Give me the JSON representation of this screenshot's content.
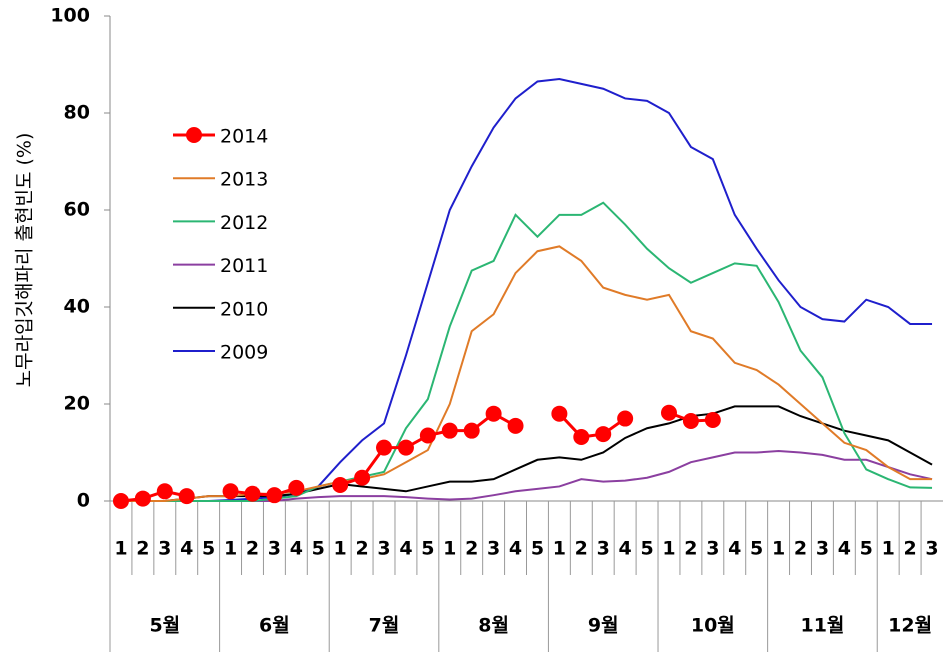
{
  "chart_data": {
    "type": "line",
    "y_label": "노무라입깃해파리 출현빈도 (%)",
    "ylim": [
      0,
      100
    ],
    "yticks": [
      0,
      20,
      40,
      60,
      80,
      100
    ],
    "categories": [
      [
        "1",
        "5월"
      ],
      [
        "2",
        "5월"
      ],
      [
        "3",
        "5월"
      ],
      [
        "4",
        "5월"
      ],
      [
        "5",
        "5월"
      ],
      [
        "1",
        "6월"
      ],
      [
        "2",
        "6월"
      ],
      [
        "3",
        "6월"
      ],
      [
        "4",
        "6월"
      ],
      [
        "5",
        "6월"
      ],
      [
        "1",
        "7월"
      ],
      [
        "2",
        "7월"
      ],
      [
        "3",
        "7월"
      ],
      [
        "4",
        "7월"
      ],
      [
        "5",
        "7월"
      ],
      [
        "1",
        "8월"
      ],
      [
        "2",
        "8월"
      ],
      [
        "3",
        "8월"
      ],
      [
        "4",
        "8월"
      ],
      [
        "5",
        "8월"
      ],
      [
        "1",
        "9월"
      ],
      [
        "2",
        "9월"
      ],
      [
        "3",
        "9월"
      ],
      [
        "4",
        "9월"
      ],
      [
        "5",
        "9월"
      ],
      [
        "1",
        "10월"
      ],
      [
        "2",
        "10월"
      ],
      [
        "3",
        "10월"
      ],
      [
        "4",
        "10월"
      ],
      [
        "5",
        "10월"
      ],
      [
        "1",
        "11월"
      ],
      [
        "2",
        "11월"
      ],
      [
        "3",
        "11월"
      ],
      [
        "4",
        "11월"
      ],
      [
        "5",
        "11월"
      ],
      [
        "1",
        "12월"
      ],
      [
        "2",
        "12월"
      ],
      [
        "3",
        "12월"
      ]
    ],
    "series": [
      {
        "name": "2014",
        "color": "#ff0000",
        "markers": true,
        "values": [
          0,
          0.5,
          2,
          1,
          null,
          2,
          1.5,
          1.2,
          2.7,
          null,
          3.3,
          4.8,
          11,
          11,
          13.5,
          14.5,
          14.5,
          18,
          15.5,
          null,
          18,
          13.2,
          13.8,
          17,
          null,
          18.2,
          16.5,
          16.7,
          null,
          null,
          null,
          null,
          null,
          null,
          null,
          null,
          null,
          null
        ]
      },
      {
        "name": "2013",
        "color": "#e07b28",
        "values": [
          0,
          0,
          0,
          0.5,
          1,
          1,
          1.5,
          1.5,
          2,
          3,
          4,
          4.5,
          5.5,
          8,
          10.5,
          20,
          35,
          38.5,
          47,
          51.5,
          52.5,
          49.5,
          44,
          42.5,
          41.5,
          42.5,
          35,
          33.5,
          28.5,
          27,
          24,
          20,
          16,
          12,
          10.5,
          7,
          4.5,
          4.5
        ]
      },
      {
        "name": "2012",
        "color": "#2bb673",
        "values": [
          0,
          0,
          0,
          0,
          0,
          0,
          0,
          0.5,
          1,
          3,
          4,
          5,
          6,
          15,
          21,
          36,
          47.5,
          49.5,
          59,
          54.5,
          59,
          59,
          61.5,
          57,
          52,
          48,
          45,
          47,
          49,
          48.5,
          41,
          31,
          25.5,
          14,
          6.5,
          4.5,
          2.8,
          2.7
        ]
      },
      {
        "name": "2011",
        "color": "#8b3fa0",
        "values": [
          0,
          0,
          0,
          0,
          0,
          0,
          0,
          0,
          0.5,
          0.8,
          1,
          1,
          1,
          0.8,
          0.5,
          0.3,
          0.5,
          1.2,
          2,
          2.5,
          3,
          4.5,
          4,
          4.2,
          4.8,
          6,
          8,
          9,
          10,
          10,
          10.3,
          10,
          9.5,
          8.5,
          8.5,
          7,
          5.5,
          4.5
        ]
      },
      {
        "name": "2010",
        "color": "#000000",
        "values": [
          0,
          0,
          0,
          0.5,
          1,
          1,
          1,
          1,
          1.5,
          2.5,
          3.5,
          3,
          2.5,
          2,
          3,
          4,
          4,
          4.5,
          6.5,
          8.5,
          9,
          8.5,
          10,
          13,
          15,
          16,
          17.5,
          18,
          19.5,
          19.5,
          19.5,
          17.5,
          16,
          14.5,
          13.5,
          12.5,
          10,
          7.5
        ]
      },
      {
        "name": "2009",
        "color": "#1f1fcc",
        "values": [
          0,
          0,
          0,
          0,
          0,
          0.2,
          0.5,
          0.8,
          1.5,
          3,
          8,
          12.5,
          16,
          30,
          45,
          60,
          69,
          77,
          83,
          86.5,
          87,
          86,
          85,
          83,
          82.5,
          80,
          73,
          70.5,
          59,
          52,
          45.5,
          40,
          37.5,
          37,
          41.5,
          40,
          36.5,
          36.5
        ]
      }
    ]
  }
}
